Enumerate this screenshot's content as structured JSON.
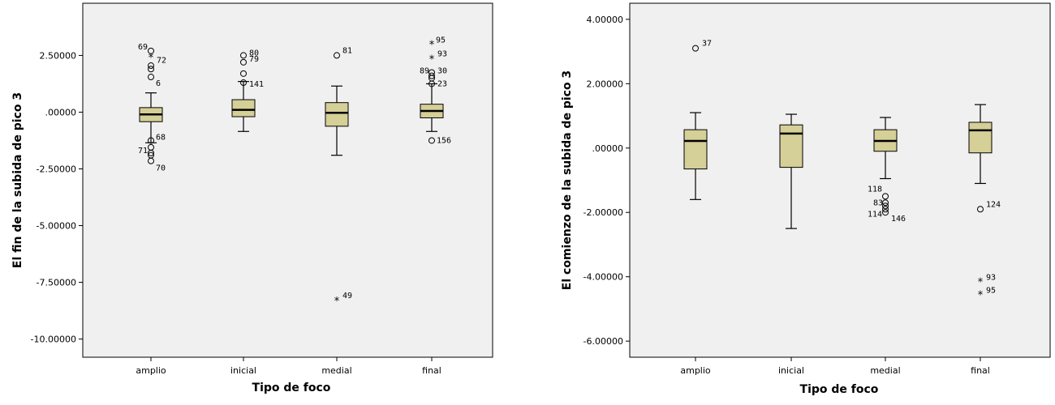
{
  "chart_data": [
    {
      "type": "box",
      "xlabel": "Tipo de foco",
      "ylabel": "El fin de la subida de pico 3",
      "categories": [
        "amplio",
        "inicial",
        "medial",
        "final"
      ],
      "ylim": [
        -10.8,
        4.8
      ],
      "yticks": [
        2.5,
        0,
        -2.5,
        -5,
        -7.5,
        -10
      ],
      "ytick_labels": [
        "2.50000",
        ".00000",
        "-2.50000",
        "-5.00000",
        "-7.50000",
        "-10.00000"
      ],
      "boxes": [
        {
          "category": "amplio",
          "q1": -0.42,
          "median": -0.1,
          "q3": 0.2,
          "whisker_low": -1.35,
          "whisker_high": 0.85,
          "outliers": [
            {
              "value": 2.7,
              "marker": "circle",
              "label": "69"
            },
            {
              "value": 2.42,
              "marker": "star",
              "label": "72"
            },
            {
              "value": 2.05,
              "marker": "circle",
              "label": ""
            },
            {
              "value": 1.9,
              "marker": "circle",
              "label": ""
            },
            {
              "value": 1.55,
              "marker": "circle",
              "label": "6"
            },
            {
              "value": -1.25,
              "marker": "circle",
              "label": "68"
            },
            {
              "value": -1.55,
              "marker": "circle",
              "label": "71"
            },
            {
              "value": -1.8,
              "marker": "circle",
              "label": ""
            },
            {
              "value": -1.9,
              "marker": "circle",
              "label": ""
            },
            {
              "value": -2.15,
              "marker": "circle",
              "label": "70"
            }
          ]
        },
        {
          "category": "inicial",
          "q1": -0.2,
          "median": 0.1,
          "q3": 0.55,
          "whisker_low": -0.85,
          "whisker_high": 1.35,
          "outliers": [
            {
              "value": 2.5,
              "marker": "circle",
              "label": "80"
            },
            {
              "value": 2.2,
              "marker": "circle",
              "label": "79"
            },
            {
              "value": 1.7,
              "marker": "circle",
              "label": ""
            },
            {
              "value": 1.3,
              "marker": "circle",
              "label": "141"
            }
          ]
        },
        {
          "category": "medial",
          "q1": -0.62,
          "median": -0.03,
          "q3": 0.42,
          "whisker_low": -1.9,
          "whisker_high": 1.15,
          "outliers": [
            {
              "value": 2.5,
              "marker": "circle",
              "label": "81"
            },
            {
              "value": -8.3,
              "marker": "star",
              "label": "49"
            }
          ]
        },
        {
          "category": "final",
          "q1": -0.25,
          "median": 0.05,
          "q3": 0.35,
          "whisker_low": -0.85,
          "whisker_high": 1.25,
          "outliers": [
            {
              "value": 3.0,
              "marker": "star",
              "label": "95"
            },
            {
              "value": 2.35,
              "marker": "star",
              "label": "93"
            },
            {
              "value": 1.75,
              "marker": "circle",
              "label": "30"
            },
            {
              "value": 1.6,
              "marker": "circle",
              "label": "89"
            },
            {
              "value": 1.5,
              "marker": "circle",
              "label": ""
            },
            {
              "value": 1.25,
              "marker": "circle",
              "label": "23"
            },
            {
              "value": -1.25,
              "marker": "circle",
              "label": "156"
            }
          ]
        }
      ]
    },
    {
      "type": "box",
      "xlabel": "Tipo de foco",
      "ylabel": "El comienzo de la subida de pico 3",
      "categories": [
        "amplio",
        "inicial",
        "medial",
        "final"
      ],
      "ylim": [
        -6.5,
        4.5
      ],
      "yticks": [
        4,
        2,
        0,
        -2,
        -4,
        -6
      ],
      "ytick_labels": [
        "4.00000",
        "2.00000",
        ".00000",
        "-2.00000",
        "-4.00000",
        "-6.00000"
      ],
      "boxes": [
        {
          "category": "amplio",
          "q1": -0.65,
          "median": 0.22,
          "q3": 0.57,
          "whisker_low": -1.6,
          "whisker_high": 1.1,
          "outliers": [
            {
              "value": 3.1,
              "marker": "circle",
              "label": "37"
            }
          ]
        },
        {
          "category": "inicial",
          "q1": -0.6,
          "median": 0.45,
          "q3": 0.72,
          "whisker_low": -2.5,
          "whisker_high": 1.05,
          "outliers": []
        },
        {
          "category": "medial",
          "q1": -0.1,
          "median": 0.22,
          "q3": 0.57,
          "whisker_low": -0.95,
          "whisker_high": 0.95,
          "outliers": [
            {
              "value": -1.5,
              "marker": "circle",
              "label": "118"
            },
            {
              "value": -1.7,
              "marker": "circle",
              "label": "83"
            },
            {
              "value": -1.8,
              "marker": "circle",
              "label": ""
            },
            {
              "value": -1.9,
              "marker": "circle",
              "label": "114"
            },
            {
              "value": -2.0,
              "marker": "circle",
              "label": "146"
            }
          ]
        },
        {
          "category": "final",
          "q1": -0.15,
          "median": 0.55,
          "q3": 0.8,
          "whisker_low": -1.1,
          "whisker_high": 1.35,
          "outliers": [
            {
              "value": -1.9,
              "marker": "circle",
              "label": "124"
            },
            {
              "value": -4.15,
              "marker": "star",
              "label": "93"
            },
            {
              "value": -4.55,
              "marker": "star",
              "label": "95"
            }
          ]
        }
      ]
    }
  ]
}
